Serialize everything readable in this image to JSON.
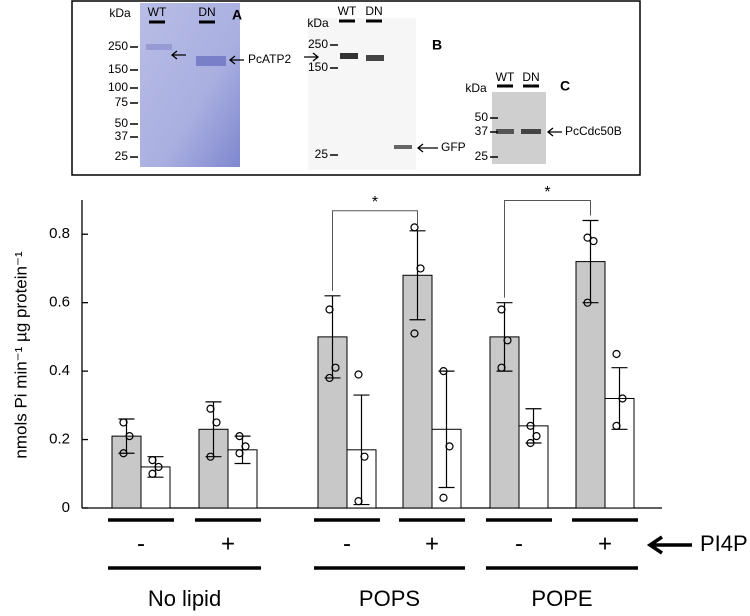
{
  "gel_panels": [
    {
      "label": "A",
      "unit": "kDa",
      "lanes": [
        "WT",
        "DN"
      ],
      "markers": [
        250,
        150,
        100,
        75,
        50,
        37,
        25
      ],
      "bands": [
        "PcATP2"
      ]
    },
    {
      "label": "B",
      "unit": "kDa",
      "lanes": [
        "WT",
        "DN"
      ],
      "markers": [
        250,
        150,
        25
      ],
      "bands": [
        "GFP"
      ]
    },
    {
      "label": "C",
      "unit": "kDa",
      "lanes": [
        "WT",
        "DN"
      ],
      "markers": [
        50,
        37,
        25
      ],
      "bands": [
        "PcCdc50B"
      ]
    }
  ],
  "chart_data": {
    "type": "bar",
    "y_label": "nmols Pi min⁻¹ µg protein⁻¹",
    "categories": [
      "-",
      "+",
      "-",
      "+",
      "-",
      "+"
    ],
    "groups": [
      "No lipid",
      "POPS",
      "POPE"
    ],
    "group_axis_label": "PI4P",
    "series": [
      {
        "color": "#c8c8c8",
        "values": [
          0.21,
          0.23,
          0.5,
          0.68,
          0.5,
          0.72
        ],
        "errors": [
          0.05,
          0.08,
          0.12,
          0.13,
          0.1,
          0.12
        ],
        "points": [
          [
            0.25,
            0.21,
            0.16
          ],
          [
            0.29,
            0.25,
            0.15
          ],
          [
            0.58,
            0.41,
            0.38
          ],
          [
            0.82,
            0.7,
            0.51
          ],
          [
            0.58,
            0.49,
            0.41
          ],
          [
            0.79,
            0.78,
            0.6
          ]
        ]
      },
      {
        "color": "#ffffff",
        "values": [
          0.12,
          0.17,
          0.17,
          0.23,
          0.24,
          0.32
        ],
        "errors": [
          0.03,
          0.04,
          0.16,
          0.17,
          0.05,
          0.09
        ],
        "points": [
          [
            0.14,
            0.12,
            0.1
          ],
          [
            0.21,
            0.18,
            0.16
          ],
          [
            0.39,
            0.15,
            0.02
          ],
          [
            0.4,
            0.18,
            0.03
          ],
          [
            0.24,
            0.21,
            0.19
          ],
          [
            0.45,
            0.32,
            0.24
          ]
        ]
      }
    ],
    "annotations": [
      {
        "text": "*",
        "from": 2,
        "to": 3
      },
      {
        "text": "*",
        "from": 4,
        "to": 5
      }
    ],
    "ylim": [
      0,
      0.9
    ],
    "yticks": [
      0,
      0.2,
      0.4,
      0.6,
      0.8
    ]
  }
}
